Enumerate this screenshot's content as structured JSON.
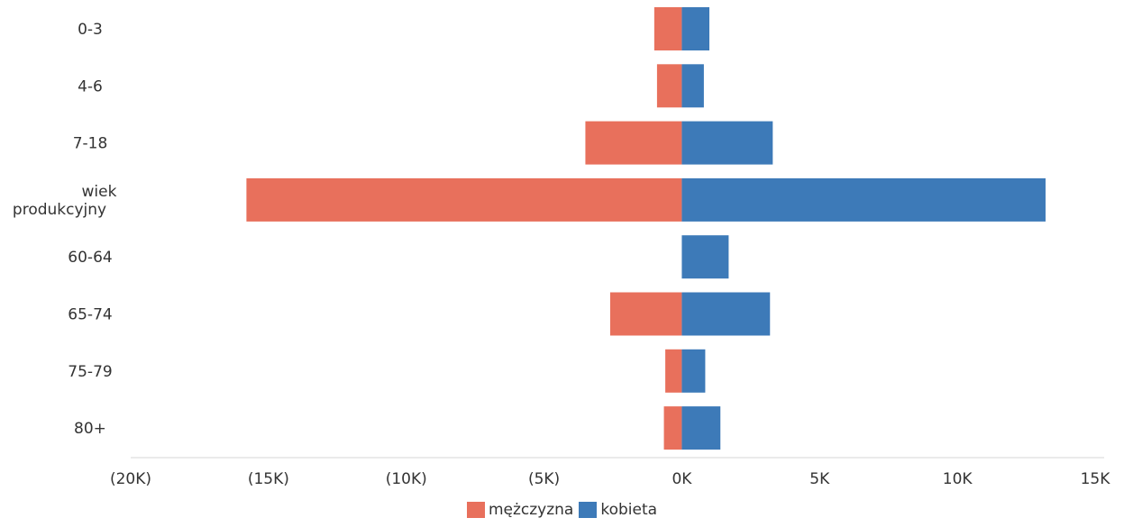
{
  "chart_data": {
    "type": "bar",
    "orientation": "horizontal",
    "stacked": "diverging",
    "categories": [
      "0-3",
      "4-6",
      "7-18",
      "wiek produkcyjny",
      "60-64",
      "65-74",
      "75-79",
      "80+"
    ],
    "category_lines": [
      [
        "0-3"
      ],
      [
        "4-6"
      ],
      [
        "7-18"
      ],
      [
        "wiek",
        "produkcyjny"
      ],
      [
        "60-64"
      ],
      [
        "65-74"
      ],
      [
        "75-79"
      ],
      [
        "80+"
      ]
    ],
    "series": [
      {
        "name": "mężczyzna",
        "color": "#e8705c",
        "values": [
          -1000,
          -900,
          -3500,
          -15800,
          0,
          -2600,
          -600,
          -650
        ]
      },
      {
        "name": "kobieta",
        "color": "#3d7ab8",
        "values": [
          1000,
          800,
          3300,
          13200,
          1700,
          3200,
          850,
          1400
        ]
      }
    ],
    "xlim": [
      -20000,
      15000
    ],
    "xticks": [
      -20000,
      -15000,
      -10000,
      -5000,
      0,
      5000,
      10000,
      15000
    ],
    "xtick_labels": [
      "(20K)",
      "(15K)",
      "(10K)",
      "(5K)",
      "0K",
      "5K",
      "10K",
      "15K"
    ],
    "legend_position": "bottom-center",
    "grid": false
  }
}
